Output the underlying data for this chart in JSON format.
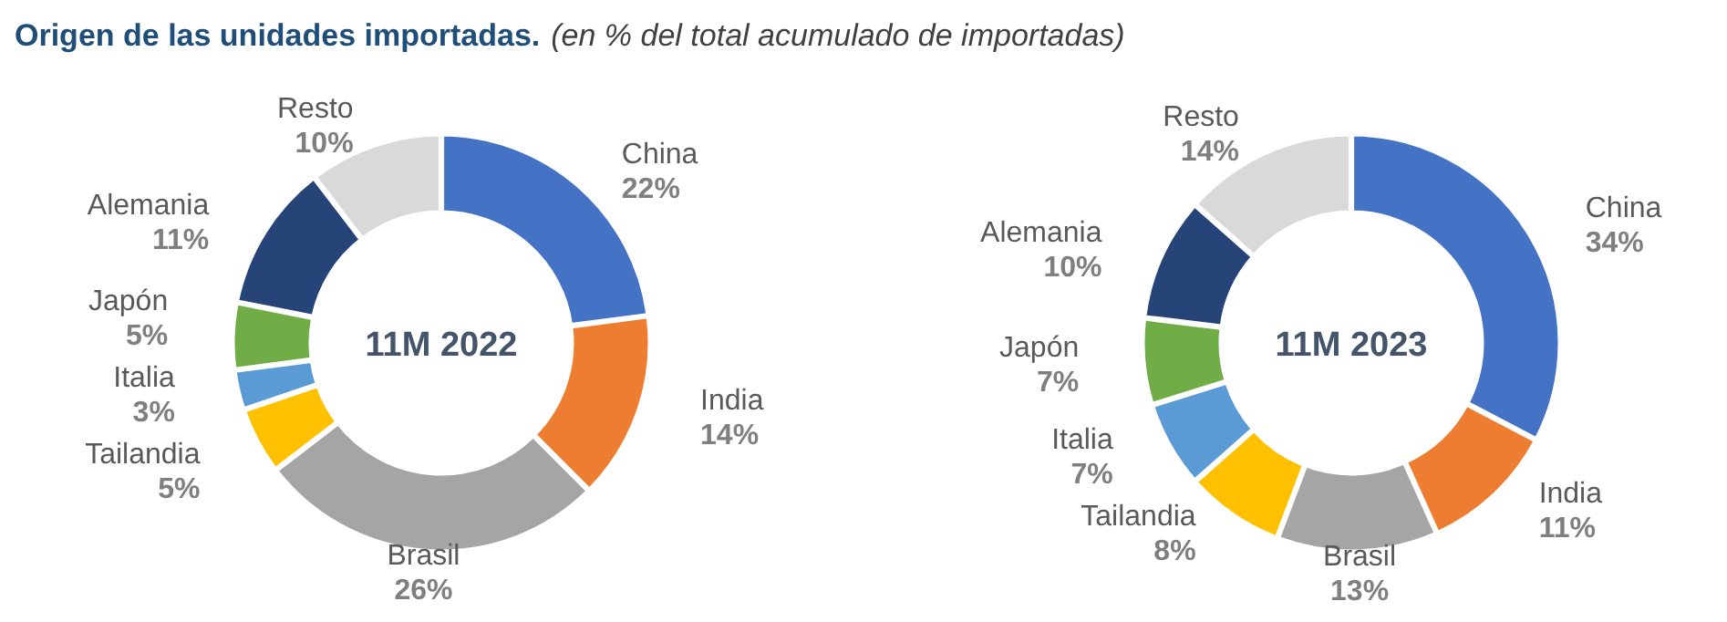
{
  "chart_data": [
    {
      "type": "donut",
      "title": "Origen de las unidades importadas.",
      "subtitle": "(en % del total acumulado de importadas)",
      "annotations": [
        "11M 2022"
      ],
      "categories": [
        "China",
        "India",
        "Brasil",
        "Tailandia",
        "Italia",
        "Japón",
        "Alemania",
        "Resto"
      ],
      "values": [
        22,
        14,
        26,
        5,
        3,
        5,
        11,
        10
      ],
      "value_labels": [
        "22%",
        "14%",
        "26%",
        "5%",
        "3%",
        "5%",
        "11%",
        "10%"
      ],
      "colors": [
        "#4472c4",
        "#ed7d31",
        "#a5a5a5",
        "#ffc000",
        "#5b9bd5",
        "#70ad47",
        "#264478",
        "#d9d9d9"
      ]
    },
    {
      "type": "donut",
      "annotations": [
        "11M 2023"
      ],
      "categories": [
        "China",
        "India",
        "Brasil",
        "Tailandia",
        "Italia",
        "Japón",
        "Alemania",
        "Resto"
      ],
      "values": [
        34,
        11,
        13,
        8,
        7,
        7,
        10,
        14
      ],
      "value_labels": [
        "34%",
        "11%",
        "13%",
        "8%",
        "7%",
        "7%",
        "10%",
        "14%"
      ],
      "colors": [
        "#4472c4",
        "#ed7d31",
        "#a5a5a5",
        "#ffc000",
        "#5b9bd5",
        "#70ad47",
        "#264478",
        "#d9d9d9"
      ]
    }
  ]
}
